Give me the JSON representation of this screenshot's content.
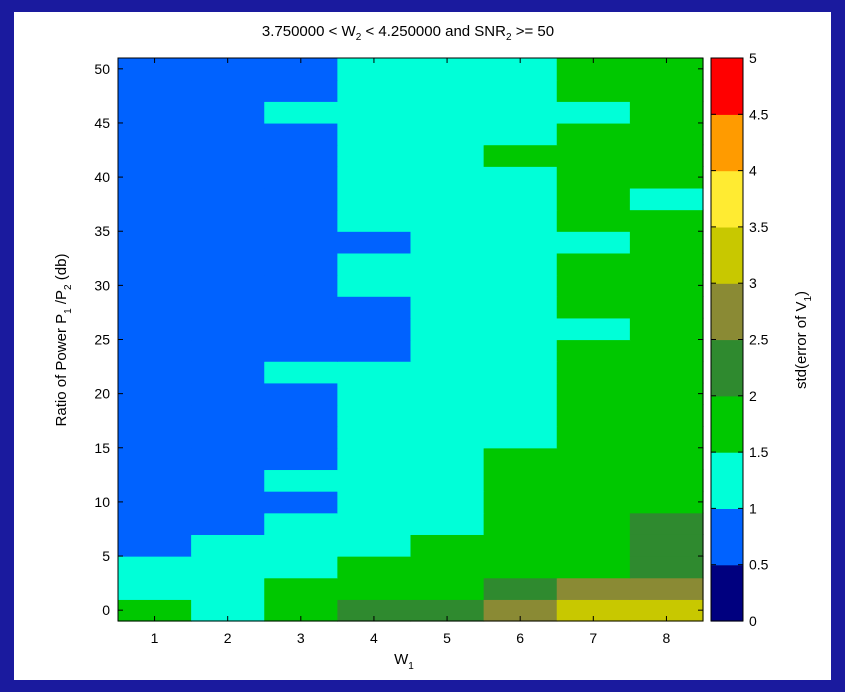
{
  "chart_data": {
    "type": "heatmap",
    "title": {
      "pre": "3.750000 < W",
      "s1": "2",
      "mid": " < 4.250000 and SNR",
      "s2": "2",
      "post": " >= 50"
    },
    "xlabel": {
      "main": "W",
      "sub": "1"
    },
    "ylabel": {
      "p1": "Ratio of Power P",
      "s1": "1",
      "p2": " /P",
      "s2": "2",
      "p3": " (db)"
    },
    "colorbar_label": {
      "main": "std(error of V",
      "sub": "1",
      "end": ")"
    },
    "x_categories": [
      1,
      2,
      3,
      4,
      5,
      6,
      7,
      8
    ],
    "x_ticks": [
      "1",
      "2",
      "3",
      "4",
      "5",
      "6",
      "7",
      "8"
    ],
    "y_values": [
      0,
      2,
      4,
      6,
      8,
      10,
      12,
      14,
      16,
      18,
      20,
      22,
      24,
      26,
      28,
      30,
      32,
      34,
      36,
      38,
      40,
      42,
      44,
      46,
      48,
      50
    ],
    "y_ticks": [
      "0",
      "5",
      "10",
      "15",
      "20",
      "25",
      "30",
      "35",
      "40",
      "45",
      "50"
    ],
    "ylim": [
      -1,
      51
    ],
    "clim": [
      0,
      5
    ],
    "colorbar_ticks": [
      "0",
      "0.5",
      "1",
      "1.5",
      "2",
      "2.5",
      "3",
      "3.5",
      "4",
      "4.5",
      "5"
    ],
    "colormap": [
      "#00007f",
      "#0062ff",
      "#00ffd8",
      "#00c800",
      "#2f8a2f",
      "#8a8a34",
      "#c8c800",
      "#ffeb32",
      "#ff9b00",
      "#ff0000"
    ],
    "z_by_row": [
      [
        1.75,
        1.25,
        1.75,
        2.25,
        2.25,
        2.75,
        3.25,
        3.25
      ],
      [
        1.25,
        1.25,
        1.75,
        1.75,
        1.75,
        2.25,
        2.75,
        2.75
      ],
      [
        1.25,
        1.25,
        1.25,
        1.75,
        1.75,
        1.75,
        1.75,
        2.25
      ],
      [
        0.75,
        1.25,
        1.25,
        1.25,
        1.75,
        1.75,
        1.75,
        2.25
      ],
      [
        0.75,
        0.75,
        1.25,
        1.25,
        1.25,
        1.75,
        1.75,
        2.25
      ],
      [
        0.75,
        0.75,
        0.75,
        1.25,
        1.25,
        1.75,
        1.75,
        1.75
      ],
      [
        0.75,
        0.75,
        1.25,
        1.25,
        1.25,
        1.75,
        1.75,
        1.75
      ],
      [
        0.75,
        0.75,
        0.75,
        1.25,
        1.25,
        1.75,
        1.75,
        1.75
      ],
      [
        0.75,
        0.75,
        0.75,
        1.25,
        1.25,
        1.25,
        1.75,
        1.75
      ],
      [
        0.75,
        0.75,
        0.75,
        1.25,
        1.25,
        1.25,
        1.75,
        1.75
      ],
      [
        0.75,
        0.75,
        0.75,
        1.25,
        1.25,
        1.25,
        1.75,
        1.75
      ],
      [
        0.75,
        0.75,
        1.25,
        1.25,
        1.25,
        1.25,
        1.75,
        1.75
      ],
      [
        0.75,
        0.75,
        0.75,
        0.75,
        1.25,
        1.25,
        1.75,
        1.75
      ],
      [
        0.75,
        0.75,
        0.75,
        0.75,
        1.25,
        1.25,
        1.25,
        1.75
      ],
      [
        0.75,
        0.75,
        0.75,
        0.75,
        1.25,
        1.25,
        1.75,
        1.75
      ],
      [
        0.75,
        0.75,
        0.75,
        1.25,
        1.25,
        1.25,
        1.75,
        1.75
      ],
      [
        0.75,
        0.75,
        0.75,
        1.25,
        1.25,
        1.25,
        1.75,
        1.75
      ],
      [
        0.75,
        0.75,
        0.75,
        0.75,
        1.25,
        1.25,
        1.25,
        1.75
      ],
      [
        0.75,
        0.75,
        0.75,
        1.25,
        1.25,
        1.25,
        1.75,
        1.75
      ],
      [
        0.75,
        0.75,
        0.75,
        1.25,
        1.25,
        1.25,
        1.75,
        1.25
      ],
      [
        0.75,
        0.75,
        0.75,
        1.25,
        1.25,
        1.25,
        1.75,
        1.75
      ],
      [
        0.75,
        0.75,
        0.75,
        1.25,
        1.25,
        1.75,
        1.75,
        1.75
      ],
      [
        0.75,
        0.75,
        0.75,
        1.25,
        1.25,
        1.25,
        1.75,
        1.75
      ],
      [
        0.75,
        0.75,
        1.25,
        1.25,
        1.25,
        1.25,
        1.25,
        1.75
      ],
      [
        0.75,
        0.75,
        0.75,
        1.25,
        1.25,
        1.25,
        1.75,
        1.75
      ],
      [
        0.75,
        0.75,
        0.75,
        1.25,
        1.25,
        1.25,
        1.75,
        1.75
      ]
    ]
  }
}
